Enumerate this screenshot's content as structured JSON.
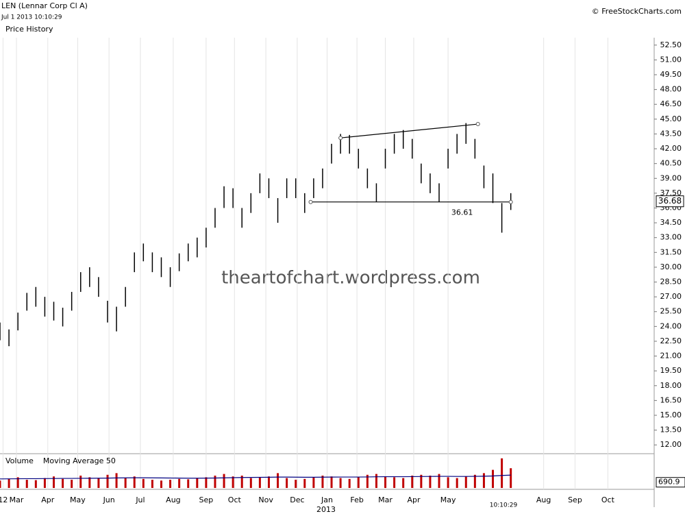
{
  "chart_data": {
    "type": "ohlc",
    "title": "LEN (Lennar Corp Cl A)",
    "timestamp": "Jul 1 2013 10:10:29",
    "subtitle": "Price History",
    "source": "© FreeStockCharts.com",
    "watermark": "theartofchart.wordpress.com",
    "time_label": "10:10:29",
    "year_label": "2013",
    "x": [
      0,
      6,
      12,
      18,
      24,
      30,
      36,
      42,
      48,
      54,
      60,
      66,
      72,
      78,
      84,
      90,
      96,
      102,
      108,
      114,
      120,
      126,
      132,
      138,
      144,
      150,
      156,
      162,
      168,
      174,
      180,
      186,
      192,
      198,
      204,
      210,
      216,
      222,
      228,
      234,
      240,
      246,
      252,
      258,
      264,
      270,
      276,
      282,
      288,
      294,
      300,
      306,
      312,
      318,
      324,
      330,
      336,
      342
    ],
    "high": [
      24.4,
      23.7,
      25.4,
      27.4,
      28,
      27,
      26.5,
      25.9,
      27.5,
      29.5,
      30,
      29,
      26.6,
      26,
      28,
      31.5,
      32.4,
      31.5,
      31,
      30,
      31.4,
      32.4,
      33,
      34,
      36,
      38.2,
      38,
      36,
      37.5,
      39.5,
      39,
      37,
      39,
      39,
      37.5,
      39,
      40,
      42.5,
      43.5,
      43.4,
      42,
      40,
      38.5,
      42,
      43.5,
      43.9,
      43,
      40.5,
      39.5,
      38.5,
      42,
      43.5,
      44.6,
      43,
      40.3,
      39.5,
      36.5,
      37.5
    ],
    "low": [
      22.6,
      22,
      23.6,
      25.6,
      26,
      25,
      24.6,
      24,
      25.6,
      27.5,
      28,
      27,
      24.4,
      23.5,
      26,
      29.5,
      30.6,
      29.5,
      29,
      28,
      29.6,
      30.6,
      31,
      32,
      34,
      36,
      36,
      34,
      35.5,
      37.5,
      37,
      34.5,
      37,
      37,
      35.5,
      37,
      38,
      40.5,
      41.5,
      41.5,
      40,
      38,
      36.6,
      40,
      41.5,
      42,
      41,
      38.5,
      37.5,
      36.6,
      40,
      41.5,
      42.5,
      41,
      38,
      36.5,
      33.5,
      35.8
    ],
    "color": "#000000",
    "last_price": 36.68,
    "xlim": [
      0,
      438
    ],
    "xticks": [
      {
        "value": 2,
        "label": "12"
      },
      {
        "value": 11,
        "label": "Mar"
      },
      {
        "value": 32,
        "label": "Apr"
      },
      {
        "value": 52,
        "label": "May"
      },
      {
        "value": 73,
        "label": "Jun"
      },
      {
        "value": 94,
        "label": "Jul"
      },
      {
        "value": 116,
        "label": "Aug"
      },
      {
        "value": 138,
        "label": "Sep"
      },
      {
        "value": 157,
        "label": "Oct"
      },
      {
        "value": 178,
        "label": "Nov"
      },
      {
        "value": 199,
        "label": "Dec"
      },
      {
        "value": 219,
        "label": "Jan"
      },
      {
        "value": 239,
        "label": "Feb"
      },
      {
        "value": 258,
        "label": "Mar"
      },
      {
        "value": 277,
        "label": "Apr"
      },
      {
        "value": 300,
        "label": "May"
      },
      {
        "value": 364,
        "label": "Aug"
      },
      {
        "value": 385,
        "label": "Sep"
      },
      {
        "value": 407,
        "label": "Oct"
      }
    ],
    "ylim": [
      11.25,
      53.25
    ],
    "yticks": [
      {
        "value": 12,
        "label": "12.00"
      },
      {
        "value": 13.5,
        "label": "13.50"
      },
      {
        "value": 15,
        "label": "15.00"
      },
      {
        "value": 16.5,
        "label": "16.50"
      },
      {
        "value": 18,
        "label": "18.00"
      },
      {
        "value": 19.5,
        "label": "19.50"
      },
      {
        "value": 21,
        "label": "21.00"
      },
      {
        "value": 22.5,
        "label": "22.50"
      },
      {
        "value": 24,
        "label": "24.00"
      },
      {
        "value": 25.5,
        "label": "25.50"
      },
      {
        "value": 27,
        "label": "27.00"
      },
      {
        "value": 28.5,
        "label": "28.50"
      },
      {
        "value": 30,
        "label": "30.00"
      },
      {
        "value": 31.5,
        "label": "31.50"
      },
      {
        "value": 33,
        "label": "33.00"
      },
      {
        "value": 34.5,
        "label": "34.50"
      },
      {
        "value": 36,
        "label": "36.00"
      },
      {
        "value": 37.5,
        "label": "37.50"
      },
      {
        "value": 39,
        "label": "39.00"
      },
      {
        "value": 40.5,
        "label": "40.50"
      },
      {
        "value": 42,
        "label": "42.00"
      },
      {
        "value": 43.5,
        "label": "43.50"
      },
      {
        "value": 45,
        "label": "45.00"
      },
      {
        "value": 46.5,
        "label": "46.50"
      },
      {
        "value": 48,
        "label": "48.00"
      },
      {
        "value": 49.5,
        "label": "49.50"
      },
      {
        "value": 51,
        "label": "51.00"
      },
      {
        "value": 52.5,
        "label": "52.50"
      }
    ],
    "grid": true,
    "trendlines": [
      {
        "x": [
          208,
          342
        ],
        "y": [
          36.61,
          36.61
        ],
        "label": "36.61"
      },
      {
        "x": [
          228,
          320
        ],
        "y": [
          43.1,
          44.5
        ]
      }
    ],
    "volume": {
      "ylim": [
        0,
        4000
      ],
      "yticks": [
        690.9
      ],
      "series": [
        {
          "name": "Volume",
          "color": "#c00000",
          "values": [
            900,
            1100,
            1300,
            1000,
            950,
            1200,
            1400,
            1100,
            1000,
            1500,
            1300,
            1200,
            1600,
            1800,
            1200,
            1400,
            1100,
            1000,
            900,
            1000,
            1100,
            1050,
            1200,
            1300,
            1500,
            1700,
            1400,
            1500,
            1200,
            1300,
            1400,
            1800,
            1200,
            1000,
            1100,
            1300,
            1500,
            1400,
            1200,
            1100,
            1300,
            1600,
            1700,
            1400,
            1300,
            1200,
            1500,
            1600,
            1500,
            1700,
            1300,
            1200,
            1400,
            1600,
            1800,
            2200,
            3600,
            2400
          ]
        },
        {
          "name": "Moving Average 50",
          "color": "#000080",
          "values": [
            1100,
            1110,
            1120,
            1130,
            1130,
            1140,
            1150,
            1160,
            1160,
            1170,
            1180,
            1190,
            1200,
            1220,
            1230,
            1240,
            1240,
            1230,
            1220,
            1210,
            1200,
            1190,
            1190,
            1200,
            1210,
            1230,
            1250,
            1270,
            1280,
            1290,
            1300,
            1320,
            1320,
            1310,
            1300,
            1300,
            1310,
            1320,
            1330,
            1330,
            1330,
            1340,
            1360,
            1370,
            1370,
            1370,
            1380,
            1390,
            1400,
            1410,
            1410,
            1400,
            1400,
            1410,
            1430,
            1460,
            1520,
            1560
          ]
        }
      ]
    }
  }
}
